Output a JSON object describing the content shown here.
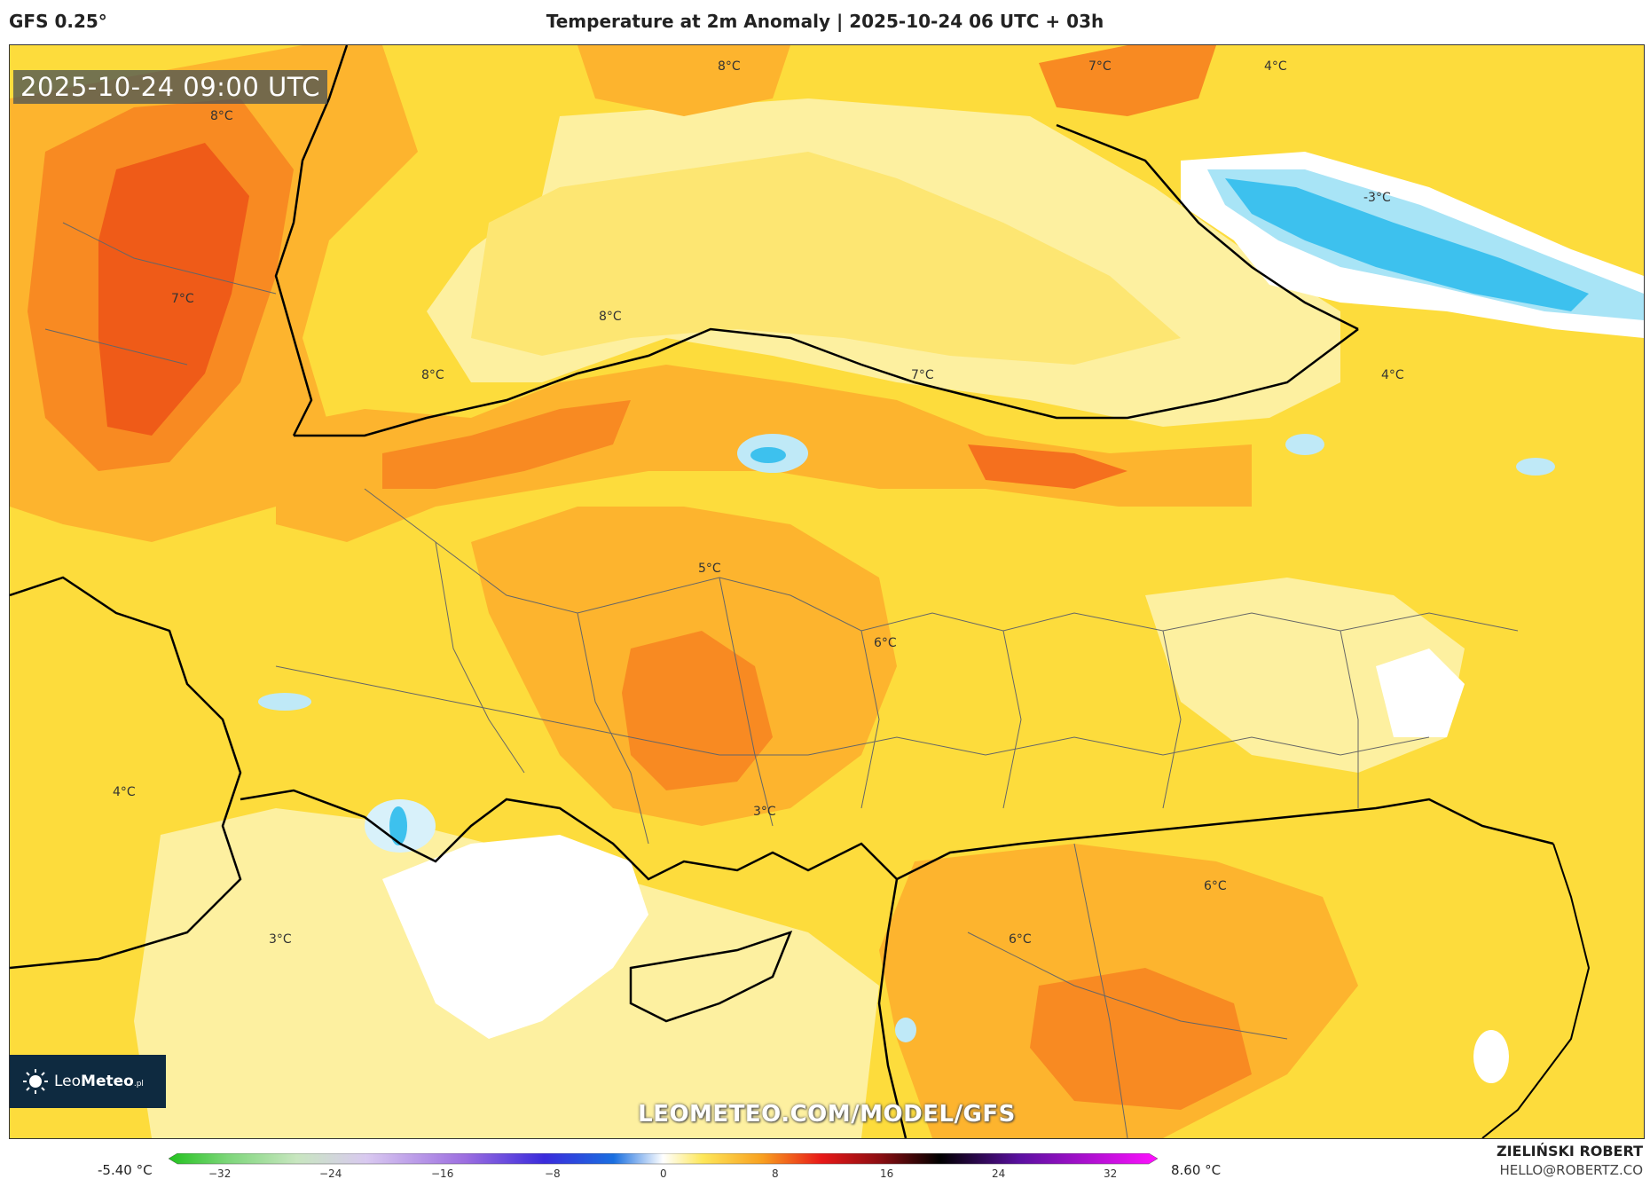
{
  "header": {
    "model": "GFS 0.25°",
    "title": "Temperature at 2m Anomaly | 2025-10-24 06 UTC + 03h"
  },
  "map": {
    "valid_time": "2025-10-24 09:00 UTC",
    "watermark": "LEOMETEO.COM/MODEL/GFS",
    "labels": [
      "8°C",
      "7°C",
      "4°C",
      "8°C",
      "-3°C",
      "7°C",
      "8°C",
      "8°C",
      "7°C",
      "4°C",
      "5°C",
      "6°C",
      "4°C",
      "3°C",
      "6°C",
      "3°C",
      "6°C"
    ]
  },
  "logo": {
    "name_regular": "Leo",
    "name_bold": "Meteo",
    "suffix": ".pl"
  },
  "colorbar": {
    "min_label": "-5.40 °C",
    "max_label": "8.60 °C",
    "ticks": [
      "−32",
      "−24",
      "−16",
      "−8",
      "0",
      "8",
      "16",
      "24",
      "32"
    ]
  },
  "author": {
    "name": "ZIELIŃSKI ROBERT",
    "email": "HELLO@ROBERTZ.CO"
  },
  "colors": {
    "warm_base": "#fde75a",
    "warm_orange": "#fdb42e",
    "hot": "#f56a1c",
    "cool": "#3dc1ee",
    "neutral": "#ffffff"
  }
}
